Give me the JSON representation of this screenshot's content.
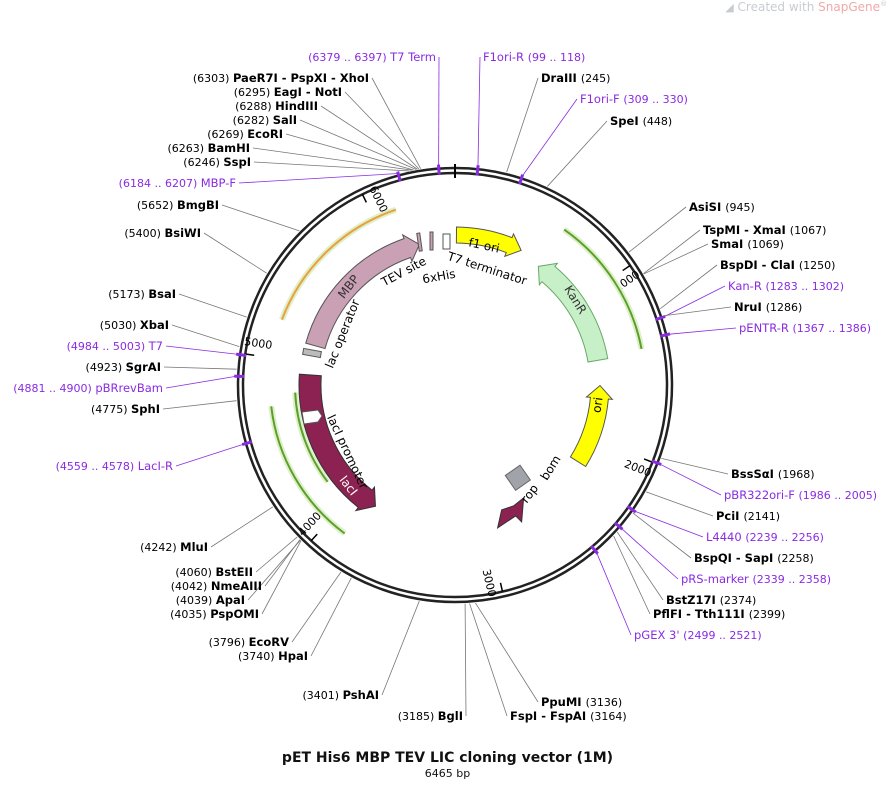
{
  "watermark": {
    "prefix": "Created with",
    "brand": "SnapGene",
    "mark": "®"
  },
  "title": "pET His6 MBP TEV LIC cloning vector (1M)",
  "length_label": "6465 bp",
  "total_bp": 6465,
  "colors": {
    "primer": "#8a2be2",
    "enzyme": "#000000",
    "backbone": "#222222",
    "mbp": "#c9a0b4",
    "f1ori": "#ffff00",
    "kanr": "#c8f0c8",
    "ori": "#ffff00",
    "laci": "#8b2252",
    "rop": "#8b2252",
    "bom": "#a0a4aa",
    "orf_orange": "#e8a040",
    "orf_green": "#5aa02c"
  },
  "ticks": [
    {
      "bp": 1000,
      "label": "1000"
    },
    {
      "bp": 2000,
      "label": "2000"
    },
    {
      "bp": 3000,
      "label": "3000"
    },
    {
      "bp": 4000,
      "label": "4000"
    },
    {
      "bp": 5000,
      "label": "5000"
    },
    {
      "bp": 6000,
      "label": "6000"
    }
  ],
  "labels": [
    {
      "kind": "primer",
      "text": "T7 Term",
      "pos": "(6379 .. 6397)",
      "bp": 6388
    },
    {
      "kind": "primer",
      "text": "F1ori-R",
      "pos": "(99 .. 118)",
      "bp": 108
    },
    {
      "kind": "enzyme",
      "text": "DraIII",
      "pos": "(245)",
      "bp": 245
    },
    {
      "kind": "primer",
      "text": "F1ori-F",
      "pos": "(309 .. 330)",
      "bp": 320
    },
    {
      "kind": "enzyme",
      "text": "SpeI",
      "pos": "(448)",
      "bp": 448
    },
    {
      "kind": "enzyme",
      "text": "AsiSI",
      "pos": "(945)",
      "bp": 945
    },
    {
      "kind": "enzyme",
      "text": "TspMI - XmaI",
      "pos": "(1067)",
      "bp": 1067
    },
    {
      "kind": "enzyme",
      "text": "SmaI",
      "pos": "(1069)",
      "bp": 1069
    },
    {
      "kind": "enzyme",
      "text": "BspDI - ClaI",
      "pos": "(1250)",
      "bp": 1250
    },
    {
      "kind": "primer",
      "text": "Kan-R",
      "pos": "(1283 .. 1302)",
      "bp": 1292
    },
    {
      "kind": "enzyme",
      "text": "NruI",
      "pos": "(1286)",
      "bp": 1286
    },
    {
      "kind": "primer",
      "text": "pENTR-R",
      "pos": "(1367 .. 1386)",
      "bp": 1376
    },
    {
      "kind": "enzyme",
      "text": "BssSαI",
      "pos": "(1968)",
      "bp": 1968
    },
    {
      "kind": "primer",
      "text": "pBR322ori-F",
      "pos": "(1986 .. 2005)",
      "bp": 1995
    },
    {
      "kind": "enzyme",
      "text": "PciI",
      "pos": "(2141)",
      "bp": 2141
    },
    {
      "kind": "primer",
      "text": "L4440",
      "pos": "(2239 .. 2256)",
      "bp": 2247
    },
    {
      "kind": "enzyme",
      "text": "BspQI - SapI",
      "pos": "(2258)",
      "bp": 2258
    },
    {
      "kind": "primer",
      "text": "pRS-marker",
      "pos": "(2339 .. 2358)",
      "bp": 2348
    },
    {
      "kind": "enzyme",
      "text": "BstZ17I",
      "pos": "(2374)",
      "bp": 2374
    },
    {
      "kind": "enzyme",
      "text": "PflFI - Tth111I",
      "pos": "(2399)",
      "bp": 2399
    },
    {
      "kind": "primer",
      "text": "pGEX 3'",
      "pos": "(2499 .. 2521)",
      "bp": 2510
    },
    {
      "kind": "enzyme",
      "text": "PpuMI",
      "pos": "(3136)",
      "bp": 3136
    },
    {
      "kind": "enzyme",
      "text": "FspI - FspAI",
      "pos": "(3164)",
      "bp": 3164
    },
    {
      "kind": "enzyme",
      "text": "BglI",
      "pos": "(3185)",
      "bp": 3185
    },
    {
      "kind": "enzyme",
      "text": "PshAI",
      "pos": "(3401)",
      "bp": 3401
    },
    {
      "kind": "enzyme",
      "text": "HpaI",
      "pos": "(3740)",
      "bp": 3740
    },
    {
      "kind": "enzyme",
      "text": "EcoRV",
      "pos": "(3796)",
      "bp": 3796
    },
    {
      "kind": "enzyme",
      "text": "PspOMI",
      "pos": "(4035)",
      "bp": 4035
    },
    {
      "kind": "enzyme",
      "text": "ApaI",
      "pos": "(4039)",
      "bp": 4039
    },
    {
      "kind": "enzyme",
      "text": "NmeAIII",
      "pos": "(4042)",
      "bp": 4042
    },
    {
      "kind": "enzyme",
      "text": "BstEII",
      "pos": "(4060)",
      "bp": 4060
    },
    {
      "kind": "enzyme",
      "text": "MluI",
      "pos": "(4242)",
      "bp": 4242
    },
    {
      "kind": "primer",
      "text": "LacI-R",
      "pos": "(4559 .. 4578)",
      "bp": 4568
    },
    {
      "kind": "enzyme",
      "text": "SphI",
      "pos": "(4775)",
      "bp": 4775
    },
    {
      "kind": "primer",
      "text": "pBRrevBam",
      "pos": "(4881 .. 4900)",
      "bp": 4890
    },
    {
      "kind": "enzyme",
      "text": "SgrAI",
      "pos": "(4923)",
      "bp": 4923
    },
    {
      "kind": "primer",
      "text": "T7",
      "pos": "(4984 .. 5003)",
      "bp": 4993
    },
    {
      "kind": "enzyme",
      "text": "XbaI",
      "pos": "(5030)",
      "bp": 5030
    },
    {
      "kind": "enzyme",
      "text": "BsaI",
      "pos": "(5173)",
      "bp": 5173
    },
    {
      "kind": "enzyme",
      "text": "BsiWI",
      "pos": "(5400)",
      "bp": 5400
    },
    {
      "kind": "enzyme",
      "text": "BmgBI",
      "pos": "(5652)",
      "bp": 5652
    },
    {
      "kind": "primer",
      "text": "MBP-F",
      "pos": "(6184 .. 6207)",
      "bp": 6195
    },
    {
      "kind": "enzyme",
      "text": "SspI",
      "pos": "(6246)",
      "bp": 6246
    },
    {
      "kind": "enzyme",
      "text": "BamHI",
      "pos": "(6263)",
      "bp": 6263
    },
    {
      "kind": "enzyme",
      "text": "EcoRI",
      "pos": "(6269)",
      "bp": 6269
    },
    {
      "kind": "enzyme",
      "text": "SalI",
      "pos": "(6282)",
      "bp": 6282
    },
    {
      "kind": "enzyme",
      "text": "HindIII",
      "pos": "(6288)",
      "bp": 6288
    },
    {
      "kind": "enzyme",
      "text": "EagI - NotI",
      "pos": "(6295)",
      "bp": 6295
    },
    {
      "kind": "enzyme",
      "text": "PaeR7I - PspXI - XhoI",
      "pos": "(6303)",
      "bp": 6303
    }
  ],
  "features": [
    {
      "name": "MBP",
      "start": 5130,
      "end": 6210,
      "dir": "cw"
    },
    {
      "name": "f1 ori",
      "start": 10,
      "end": 470,
      "dir": "cw"
    },
    {
      "name": "KanR",
      "start": 630,
      "end": 1440,
      "dir": "ccw"
    },
    {
      "name": "ori",
      "start": 1620,
      "end": 2190,
      "dir": "ccw"
    },
    {
      "name": "lacI",
      "start": 3830,
      "end": 4920,
      "dir": "ccw"
    },
    {
      "name": "rop",
      "label": "rop",
      "bp": 2820
    },
    {
      "name": "bom",
      "label": "bom",
      "bp": 2640
    }
  ],
  "small_labels": [
    {
      "text": "TEV site"
    },
    {
      "text": "6xHis"
    },
    {
      "text": "T7 terminator"
    },
    {
      "text": "lac operator"
    },
    {
      "text": "lacI promoter"
    }
  ]
}
